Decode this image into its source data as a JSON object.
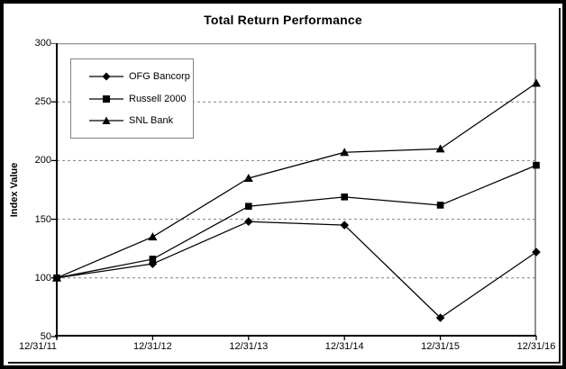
{
  "title": "Total Return Performance",
  "colors": {
    "series": "#000000",
    "grid": "#808080",
    "plot_border": "#909090",
    "axis": "#000000",
    "background": "#ffffff",
    "frame": "#000000",
    "legend_border": "#808080"
  },
  "chart_data": {
    "type": "line",
    "title": "Total Return Performance",
    "ylabel": "Index Value",
    "xlabel": "",
    "ylim": [
      50,
      300
    ],
    "yticks": [
      300,
      250,
      200,
      150,
      100,
      50
    ],
    "grid_values": [
      250,
      200,
      150,
      100
    ],
    "grid": true,
    "legend_position": "upper-left",
    "x": [
      "12/31/11",
      "12/31/12",
      "12/31/13",
      "12/31/14",
      "12/31/15",
      "12/31/16"
    ],
    "series": [
      {
        "name": "OFG Bancorp",
        "marker": "diamond",
        "values": [
          100,
          112,
          148,
          145,
          66,
          122
        ]
      },
      {
        "name": "Russell 2000",
        "marker": "square",
        "values": [
          100,
          116,
          161,
          169,
          162,
          196
        ]
      },
      {
        "name": "SNL Bank",
        "marker": "triangle",
        "values": [
          100,
          135,
          185,
          207,
          210,
          266
        ]
      }
    ]
  }
}
